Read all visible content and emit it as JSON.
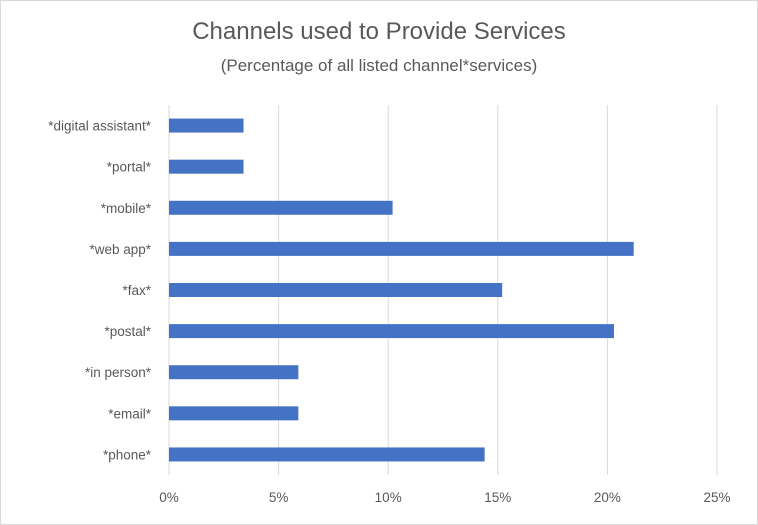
{
  "chart_data": {
    "type": "bar",
    "orientation": "horizontal",
    "title": "Channels used to Provide Services",
    "subtitle": "(Percentage of all listed channel*services)",
    "categories": [
      "*digital assistant*",
      "*portal*",
      "*mobile*",
      "*web app*",
      "*fax*",
      "*postal*",
      "*in person*",
      "*email*",
      "*phone*"
    ],
    "values": [
      3.4,
      3.4,
      10.2,
      21.2,
      15.2,
      20.3,
      5.9,
      5.9,
      14.4
    ],
    "xlim": [
      0,
      25
    ],
    "xticks": [
      "0%",
      "5%",
      "10%",
      "15%",
      "20%",
      "25%"
    ],
    "xtick_values": [
      0,
      5,
      10,
      15,
      20,
      25
    ],
    "grid": true,
    "legend": "none",
    "bar_color": "#4472c4",
    "grid_color": "#d9d9d9"
  }
}
